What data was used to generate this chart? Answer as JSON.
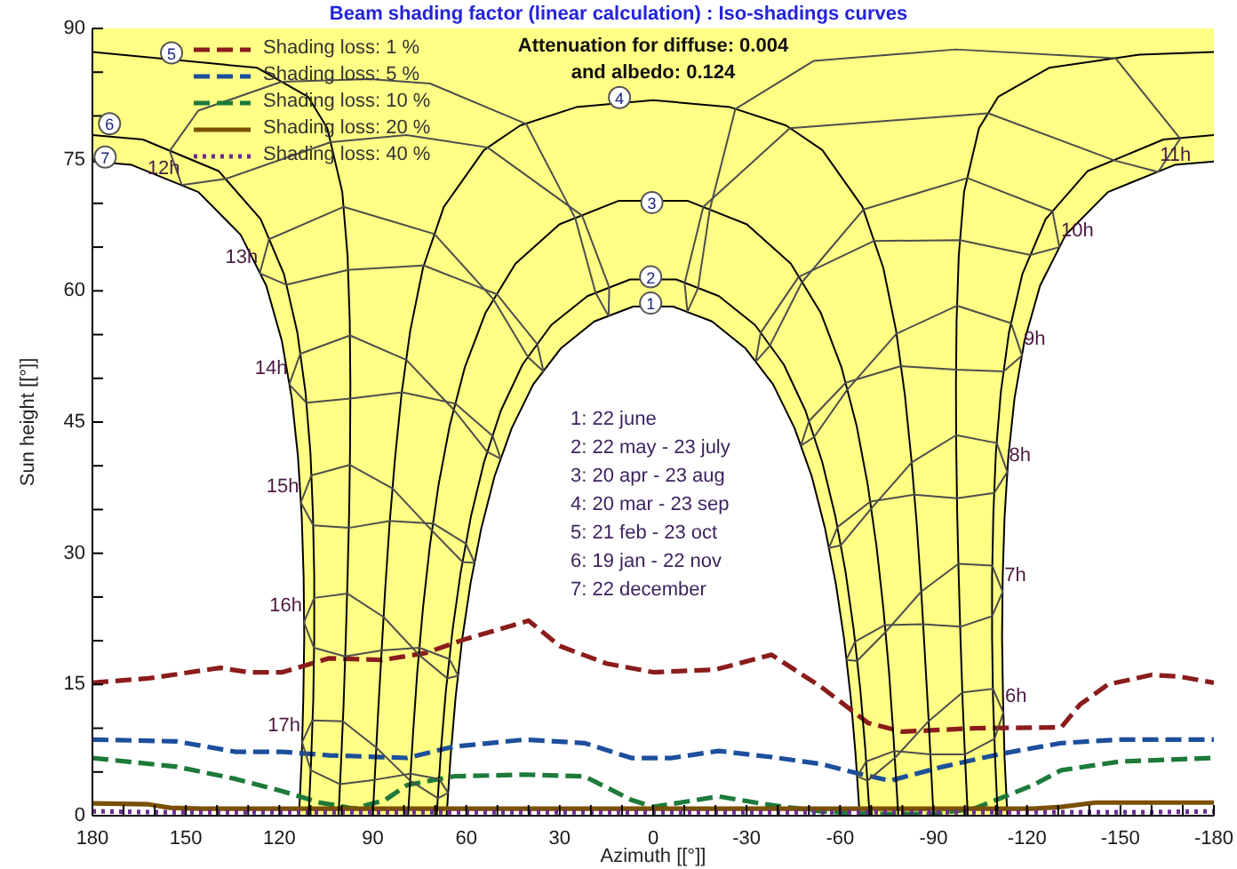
{
  "chart_data": {
    "type": "line",
    "title": "Beam shading factor (linear calculation) : Iso-shadings curves",
    "xlabel": "Azimuth [[°]]",
    "ylabel": "Sun height [[°]]",
    "xlim": [
      180,
      -180
    ],
    "xticks": [
      180,
      {
        "value": 170,
        "label": null
      },
      {
        "value": 160,
        "label": null
      },
      150,
      {
        "value": 140,
        "label": null
      },
      {
        "value": 130,
        "label": null
      },
      120,
      {
        "value": 110,
        "label": null
      },
      {
        "value": 100,
        "label": null
      },
      90,
      {
        "value": 80,
        "label": null
      },
      {
        "value": 70,
        "label": null
      },
      60,
      {
        "value": 50,
        "label": null
      },
      {
        "value": 40,
        "label": null
      },
      30,
      {
        "value": 20,
        "label": null
      },
      {
        "value": 10,
        "label": null
      },
      0,
      {
        "value": -10,
        "label": null
      },
      {
        "value": -20,
        "label": null
      },
      -30,
      {
        "value": -40,
        "label": null
      },
      {
        "value": -50,
        "label": null
      },
      -60,
      {
        "value": -70,
        "label": null
      },
      {
        "value": -80,
        "label": null
      },
      -90,
      {
        "value": -100,
        "label": null
      },
      {
        "value": -110,
        "label": null
      },
      -120,
      {
        "value": -130,
        "label": null
      },
      {
        "value": -140,
        "label": null
      },
      -150,
      {
        "value": -160,
        "label": null
      },
      {
        "value": -170,
        "label": null
      },
      -180
    ],
    "ylim": [
      0,
      90
    ],
    "yticks": [
      0,
      {
        "value": 5,
        "label": null
      },
      {
        "value": 10,
        "label": null
      },
      15,
      {
        "value": 20,
        "label": null
      },
      {
        "value": 25,
        "label": null
      },
      30,
      {
        "value": 35,
        "label": null
      },
      {
        "value": 40,
        "label": null
      },
      45,
      {
        "value": 50,
        "label": null
      },
      {
        "value": 55,
        "label": null
      },
      60,
      {
        "value": 65,
        "label": null
      },
      {
        "value": 70,
        "label": null
      },
      75,
      {
        "value": 80,
        "label": null
      },
      {
        "value": 85,
        "label": null
      },
      90
    ],
    "legend": "top left",
    "annotations": [
      "Attenuation for diffuse: 0.004",
      "and albedo: 0.124",
      "1: 22 june",
      "2: 22 may - 23 july",
      "3: 20 apr - 23 aug",
      "4: 20 mar - 23 sep",
      "5: 21 feb - 23 oct",
      "6: 19 jan - 22 nov",
      "7: 22 december",
      {
        "text": "1",
        "x": 0.8,
        "y": 58.6
      },
      {
        "text": "2",
        "x": 0.8,
        "y": 61.6
      },
      {
        "text": "3",
        "x": 0.4,
        "y": 70.1
      },
      {
        "text": "4",
        "x": 10.8,
        "y": 82.1
      },
      {
        "text": "5",
        "x": 154.6,
        "y": 87.2
      },
      {
        "text": "6",
        "x": 174.5,
        "y": 79.1
      },
      {
        "text": "7",
        "x": 175.9,
        "y": 75.3
      },
      {
        "text": "6h",
        "x": -112.4,
        "y": 11.8
      },
      {
        "text": "7h",
        "x": -112.2,
        "y": 25.6
      },
      {
        "text": "8h",
        "x": -113.7,
        "y": 39.3
      },
      {
        "text": "9h",
        "x": -118.4,
        "y": 52.6
      },
      {
        "text": "10h",
        "x": -130.4,
        "y": 65.0
      },
      {
        "text": "11h",
        "x": -162.1,
        "y": 73.6
      },
      {
        "text": "12h",
        "x": 151.3,
        "y": 72.1
      },
      {
        "text": "13h",
        "x": 126.3,
        "y": 62.0
      },
      {
        "text": "14h",
        "x": 116.8,
        "y": 49.3
      },
      {
        "text": "15h",
        "x": 113.1,
        "y": 35.8
      },
      {
        "text": "16h",
        "x": 112.1,
        "y": 22.1
      },
      {
        "text": "17h",
        "x": 112.7,
        "y": 8.4
      }
    ],
    "series": [
      {
        "color": "#000000",
        "x": [
          180,
          167.4,
          146.0,
          132.4,
          124.2,
          119.2,
          116.0,
          114.0,
          112.8,
          112.2,
          112.0,
          112.3,
          112.8,
          113.7,
          66.3,
          65.0,
          63.4,
          61.3,
          58.6,
          55.2,
          50.9,
          45.4,
          38.5,
          29.7,
          18.9,
          6.4,
          -6.4,
          -18.9,
          -29.7,
          -38.5,
          -45.4,
          -50.9,
          -55.2,
          -58.6,
          -61.3,
          -63.4,
          -65.0,
          -66.3,
          -113.7,
          -112.8,
          -112.3,
          -112.0,
          -112.2,
          -112.8,
          -114.0,
          -116.0,
          -119.2,
          -124.2,
          -132.4,
          -146.0,
          -167.4,
          -180
        ],
        "values": [
          74.8,
          74.4,
          71.3,
          66.4,
          60.6,
          54.3,
          47.7,
          41.0,
          34.1,
          27.3,
          20.4,
          13.5,
          6.7,
          0,
          0,
          6.9,
          13.6,
          20.2,
          26.6,
          32.8,
          38.8,
          44.3,
          49.3,
          53.4,
          56.5,
          58.2,
          58.2,
          56.5,
          53.4,
          49.3,
          44.3,
          38.8,
          32.8,
          26.6,
          20.2,
          13.6,
          6.9,
          0,
          0,
          6.7,
          13.5,
          20.4,
          27.3,
          34.1,
          41.0,
          47.7,
          54.3,
          60.6,
          66.4,
          71.3,
          74.4,
          74.8
        ],
        "lower": [
          74.8,
          74.4,
          71.3,
          66.4,
          60.6,
          54.3,
          47.7,
          41.0,
          34.1,
          27.3,
          20.4,
          13.5,
          6.7,
          0,
          0,
          6.9,
          13.6,
          20.2,
          26.6,
          32.8,
          38.8,
          44.3,
          49.3,
          53.4,
          56.5,
          58.2,
          58.2,
          56.5,
          53.4,
          49.3,
          44.3,
          38.8,
          32.8,
          26.6,
          20.2,
          13.6,
          6.9,
          0,
          0,
          6.7,
          13.5,
          20.4,
          27.3,
          34.1,
          41.0,
          47.7,
          54.3,
          60.6,
          66.4,
          71.3,
          74.4,
          74.8
        ],
        "upper": [
          90,
          90,
          90,
          90,
          90,
          90,
          90,
          90,
          90,
          90,
          90,
          90,
          90,
          90,
          90,
          90,
          90,
          90,
          90,
          90,
          90,
          90,
          90,
          90,
          90,
          90,
          90,
          90,
          90,
          90,
          90,
          90,
          90,
          90,
          90,
          90,
          90,
          90,
          90,
          90,
          90,
          90,
          90,
          90,
          90,
          90,
          90,
          90,
          90,
          90,
          90,
          90
        ]
      },
      {
        "name": "Shading loss: 1 %",
        "color": "#8b1c1c",
        "line_style": "dashed",
        "x": [
          180,
          162,
          139,
          130,
          119,
          104,
          87,
          73,
          61,
          40,
          30,
          15,
          0,
          -20,
          -38,
          -54,
          -69,
          -80,
          -103,
          -131,
          -137,
          -146,
          -160,
          -169,
          -180
        ],
        "values": [
          15.2,
          15.7,
          16.9,
          16.4,
          16.4,
          18.0,
          17.8,
          18.6,
          20.1,
          22.3,
          19.4,
          17.4,
          16.4,
          16.7,
          18.4,
          14.7,
          10.6,
          9.6,
          10.0,
          10.1,
          12.7,
          15.0,
          16.1,
          15.9,
          15.2
        ]
      },
      {
        "name": "Shading loss: 5 %",
        "color": "#1c4f9c",
        "line_style": "dashed",
        "x": [
          180,
          153,
          134,
          119,
          104,
          87,
          79,
          64,
          41,
          22,
          7,
          -6,
          -21,
          -38,
          -54,
          -65,
          -76,
          -93,
          -112,
          -131,
          -150,
          -180
        ],
        "values": [
          8.7,
          8.5,
          7.3,
          7.3,
          6.9,
          6.7,
          6.6,
          7.9,
          8.7,
          8.3,
          6.6,
          6.6,
          7.4,
          6.7,
          5.9,
          4.9,
          4.0,
          5.6,
          7.1,
          8.3,
          8.7,
          8.7
        ]
      },
      {
        "name": "Shading loss: 10 %",
        "color": "#1d7a3a",
        "line_style": "dashed",
        "x": [
          180,
          153,
          134,
          119,
          107,
          96,
          86,
          79,
          64,
          41,
          22,
          7,
          0,
          -21,
          -38,
          -54,
          -70,
          -90,
          -103,
          -122,
          -131,
          -150,
          -180
        ],
        "values": [
          6.6,
          5.6,
          4.2,
          2.8,
          1.5,
          0.8,
          1.8,
          3.5,
          4.5,
          4.7,
          4.5,
          1.8,
          1.0,
          2.2,
          1.2,
          0.5,
          0.2,
          0.2,
          0.8,
          3.5,
          5.2,
          6.2,
          6.6
        ]
      },
      {
        "name": "Shading loss: 20 %",
        "color": "#7a4f00",
        "line_style": "solid",
        "x": [
          180,
          162,
          155,
          145,
          120,
          60,
          0,
          -60,
          -122,
          -131,
          -142,
          -180
        ],
        "values": [
          1.4,
          1.3,
          0.9,
          0.8,
          0.8,
          0.8,
          0.8,
          0.8,
          0.8,
          1.0,
          1.5,
          1.5
        ]
      },
      {
        "name": "Shading loss: 40 %",
        "color": "#6a2d8f",
        "line_style": "dotted",
        "x": [
          180,
          160,
          120,
          60,
          0,
          -60,
          -120,
          -160,
          -180
        ],
        "values": [
          0.5,
          0.4,
          0.4,
          0.4,
          0.4,
          0.4,
          0.4,
          0.4,
          0.5
        ]
      },
      {
        "color": "#000000",
        "x": [
          -69.5,
          -68.1,
          -66.5,
          -64.4,
          -61.8,
          -58.5,
          -54.3,
          -48.9,
          -41.9,
          -32.7,
          -21.1,
          -7.4,
          7.4,
          21.1,
          32.7,
          41.9,
          48.9,
          54.3,
          58.5,
          61.8,
          64.4,
          66.5,
          68.1,
          69.5
        ],
        "values": [
          0,
          7.6,
          14.4,
          21.2,
          27.8,
          34.2,
          40.4,
          46.3,
          51.6,
          56.1,
          59.4,
          61.3,
          61.3,
          59.4,
          56.1,
          51.6,
          46.3,
          40.4,
          34.2,
          27.8,
          21.2,
          14.4,
          7.6,
          0
        ]
      },
      {
        "color": "#000000",
        "x": [
          -78.7,
          -77.1,
          -75.7,
          -73.9,
          -71.7,
          -68.9,
          -65.3,
          -60.5,
          -53.8,
          -44.2,
          -30.1,
          -11.0,
          11.0,
          30.1,
          44.2,
          53.8,
          60.5,
          65.3,
          68.9,
          71.7,
          73.9,
          75.7,
          77.1,
          78.7
        ],
        "values": [
          0,
          9.3,
          16.5,
          23.7,
          30.8,
          37.8,
          44.6,
          51.2,
          57.5,
          63.1,
          67.6,
          70.3,
          70.3,
          67.6,
          63.1,
          57.5,
          51.2,
          44.6,
          37.8,
          30.8,
          23.7,
          16.5,
          9.3,
          0
        ]
      },
      {
        "color": "#000000",
        "x": [
          -90,
          -88.4,
          -87.2,
          -86.0,
          -84.6,
          -82.9,
          -80.8,
          -78.0,
          -73.9,
          -67.2,
          -54.3,
          -42.7,
          -24.7,
          0,
          24.7,
          42.7,
          54.3,
          67.2,
          73.9,
          78.0,
          80.8,
          82.9,
          84.6,
          86.0,
          87.2,
          88.4,
          90
        ],
        "values": [
          0,
          11.1,
          18.6,
          26.0,
          33.4,
          40.7,
          48.1,
          55.4,
          62.6,
          69.6,
          76.1,
          78.9,
          81.0,
          81.8,
          81.0,
          78.9,
          76.1,
          69.6,
          62.6,
          55.4,
          48.1,
          40.7,
          33.4,
          26.0,
          18.6,
          11.1,
          0
        ]
      },
      {
        "color": "#000000",
        "x": [
          -101.0,
          -100.3,
          -99.4,
          -98.7,
          -98.1,
          -97.6,
          -97.3,
          -97.2,
          -97.4,
          -98.1,
          -99.8,
          -104.6,
          -110.8,
          -127.1,
          -156.1,
          -180
        ],
        "values": [
          0,
          5.2,
          12.5,
          19.8,
          27.2,
          34.5,
          41.9,
          49.3,
          56.6,
          64.0,
          71.3,
          78.6,
          82.2,
          85.5,
          87.0,
          87.3
        ]
      },
      {
        "color": "#000000",
        "x": [
          180,
          127.1,
          110.8,
          104.6,
          99.8,
          98.1,
          97.4,
          97.2,
          97.3,
          97.6,
          98.1,
          98.7,
          99.4,
          100.3,
          101.0
        ],
        "values": [
          87.3,
          85.5,
          82.2,
          78.6,
          71.3,
          64.0,
          56.6,
          49.3,
          41.9,
          34.5,
          27.2,
          19.8,
          12.5,
          5.2,
          0
        ]
      },
      {
        "color": "#000000",
        "x": [
          -110.6,
          -109.8,
          -109.1,
          -108.8,
          -108.8,
          -109.2,
          -110.0,
          -111.6,
          -114.2,
          -118.5,
          -126.0,
          -139.5,
          -163.8,
          -180
        ],
        "values": [
          0,
          6.3,
          13.3,
          20.4,
          27.4,
          34.4,
          41.4,
          48.4,
          55.2,
          61.9,
          68.2,
          73.7,
          77.3,
          77.8
        ]
      },
      {
        "color": "#000000",
        "x": [
          180,
          163.8,
          139.5,
          126.0,
          118.5,
          114.2,
          111.6,
          110.0,
          109.2,
          108.8,
          108.8,
          109.1,
          109.8,
          110.6
        ],
        "values": [
          77.8,
          77.3,
          73.7,
          68.2,
          61.9,
          55.2,
          48.4,
          41.4,
          34.4,
          27.4,
          20.4,
          13.3,
          6.3,
          0
        ]
      },
      {
        "color": "#4d4d4d",
        "x": [
          -112.4,
          -109.6,
          -100.1,
          -89.0,
          -77.5,
          -68.4,
          -65.5
        ],
        "values": [
          11.8,
          8.8,
          7.0,
          7.0,
          7.4,
          6.2,
          4.5
        ]
      },
      {
        "color": "#4d4d4d",
        "x": [
          -65.5,
          -68.8,
          -77.6,
          -88.4,
          -99.3,
          -109.1,
          -112.4
        ],
        "values": [
          4.5,
          4.0,
          6.6,
          10.8,
          14.1,
          14.5,
          11.8
        ]
      },
      {
        "color": "#4d4d4d",
        "x": [
          -112.2,
          -108.8,
          -98.6,
          -86.7,
          -74.4,
          -64.8,
          -62.0
        ],
        "values": [
          25.6,
          22.8,
          21.6,
          21.9,
          21.8,
          19.9,
          17.8
        ]
      },
      {
        "color": "#4d4d4d",
        "x": [
          -62.0,
          -65.5,
          -74.6,
          -86.0,
          -98.0,
          -108.8,
          -112.2
        ],
        "values": [
          17.8,
          17.7,
          21.0,
          25.6,
          28.8,
          28.6,
          25.6
        ]
      },
      {
        "color": "#4d4d4d",
        "x": [
          -113.7,
          -109.5,
          -97.6,
          -83.8,
          -69.7,
          -59.2,
          -56.4
        ],
        "values": [
          39.3,
          36.9,
          36.3,
          36.7,
          35.9,
          33.0,
          30.6
        ]
      },
      {
        "color": "#4d4d4d",
        "x": [
          -56.4,
          -60.2,
          -70.0,
          -83.0,
          -97.3,
          -110.3,
          -113.7
        ],
        "values": [
          30.6,
          30.9,
          35.1,
          40.4,
          43.5,
          42.6,
          39.3
        ]
      },
      {
        "color": "#4d4d4d",
        "x": [
          -118.4,
          -112.5,
          -97.3,
          -79.5,
          -61.8,
          -50.0,
          -47.4
        ],
        "values": [
          52.6,
          50.8,
          51.0,
          51.4,
          49.5,
          45.1,
          42.3
        ]
      },
      {
        "color": "#4d4d4d",
        "x": [
          -47.4,
          -51.7,
          -62.3,
          -78.1,
          -97.5,
          -114.9,
          -118.4
        ],
        "values": [
          42.3,
          43.3,
          48.7,
          55.1,
          58.3,
          56.3,
          52.6
        ]
      },
      {
        "color": "#4d4d4d",
        "x": [
          -130.4,
          -121.1,
          -98.5,
          -70.9,
          -46.7,
          -34.5,
          -32.9
        ],
        "values": [
          65.0,
          64.1,
          65.8,
          65.7,
          61.6,
          55.2,
          51.9
        ]
      },
      {
        "color": "#4d4d4d",
        "x": [
          -32.9,
          -37.4,
          -47.8,
          -67.5,
          -100.9,
          -128.2,
          -130.4
        ],
        "values": [
          51.9,
          53.7,
          61.0,
          69.3,
          72.9,
          69.1,
          65.0
        ]
      },
      {
        "color": "#4d4d4d",
        "x": [
          -162.1,
          -148.1,
          -107.6,
          -43.9,
          -16.1,
          -10.1,
          -11.0
        ],
        "values": [
          73.6,
          74.9,
          80.3,
          78.6,
          69.6,
          60.9,
          57.6
        ]
      },
      {
        "color": "#4d4d4d",
        "x": [
          -11.0,
          -14.4,
          -18.2,
          -26.4,
          -51.6,
          -97.2,
          -148.4,
          -169.2,
          -162.1
        ],
        "values": [
          57.6,
          60.3,
          69.3,
          80.8,
          86.3,
          87.6,
          86.6,
          77.4,
          73.6
        ]
      },
      {
        "color": "#4d4d4d",
        "x": [
          151.3,
          155.2,
          146,
          119.3,
          91,
          71.6,
          40.8,
          25.0,
          18.5,
          14.3
        ],
        "values": [
          72.1,
          76.0,
          80.6,
          83.9,
          84.2,
          83.7,
          79.1,
          68.3,
          59.8,
          57.1
        ]
      },
      {
        "color": "#4d4d4d",
        "x": [
          14.3,
          14.1,
          22.8,
          53.2,
          79.2,
          103.5,
          137.2,
          151.3
        ],
        "values": [
          57.1,
          60.4,
          68.6,
          76.4,
          77.8,
          77.0,
          72.8,
          72.1
        ]
      },
      {
        "color": "#4d4d4d",
        "x": [
          126.3,
          123.3,
          99.4,
          70.2,
          51.2,
          40.1,
          35.2
        ],
        "values": [
          62.0,
          65.9,
          69.6,
          66.5,
          59.0,
          52.4,
          50.8
        ]
      },
      {
        "color": "#4d4d4d",
        "x": [
          35.2,
          37.2,
          50.1,
          73.6,
          97.9,
          117.8,
          126.3
        ],
        "values": [
          50.8,
          53.9,
          59.6,
          62.9,
          62.4,
          60.7,
          62.0
        ]
      },
      {
        "color": "#4d4d4d",
        "x": [
          116.8,
          113.3,
          97.3,
          79.2,
          64.0,
          53.3,
          48.9
        ],
        "values": [
          49.3,
          52.8,
          54.9,
          52.1,
          46.4,
          41.6,
          40.8
        ]
      },
      {
        "color": "#4d4d4d",
        "x": [
          48.9,
          51.5,
          63.5,
          80.6,
          97.2,
          111.3,
          116.8
        ],
        "values": [
          40.8,
          43.4,
          47.1,
          48.4,
          47.7,
          47.2,
          49.3
        ]
      },
      {
        "color": "#4d4d4d",
        "x": [
          113.1,
          109.7,
          97.4,
          83.6,
          71.0,
          61.2,
          57.3
        ],
        "values": [
          35.8,
          38.9,
          40.1,
          37.4,
          32.6,
          29.0,
          28.9
        ]
      },
      {
        "color": "#4d4d4d",
        "x": [
          57.3,
          60.1,
          70.6,
          84.5,
          97.7,
          109.1,
          113.1
        ],
        "values": [
          28.9,
          31.1,
          33.4,
          33.7,
          32.9,
          33.2,
          35.8
        ]
      },
      {
        "color": "#4d4d4d",
        "x": [
          112.1,
          108.8,
          98.2,
          86.5,
          75.2,
          66.1,
          62.6
        ],
        "values": [
          22.1,
          24.9,
          25.4,
          22.7,
          18.4,
          15.7,
          16.0
        ]
      },
      {
        "color": "#4d4d4d",
        "x": [
          62.6,
          65.4,
          75.0,
          87.2,
          98.9,
          108.9,
          112.1
        ],
        "values": [
          16.0,
          17.9,
          19.2,
          18.9,
          18.2,
          19.2,
          22.1
        ]
      },
      {
        "color": "#4d4d4d",
        "x": [
          112.7,
          109.4,
          99.6,
          88.9,
          78.0,
          69.1,
          65.8
        ],
        "values": [
          8.4,
          10.9,
          10.8,
          7.8,
          4.0,
          2.0,
          2.6
        ]
      },
      {
        "color": "#4d4d4d",
        "x": [
          65.8,
          68.7,
          77.9,
          89.4,
          100.5,
          109.9,
          112.7
        ],
        "values": [
          2.6,
          4.2,
          4.8,
          4.1,
          3.6,
          5.2,
          8.4
        ]
      }
    ]
  }
}
